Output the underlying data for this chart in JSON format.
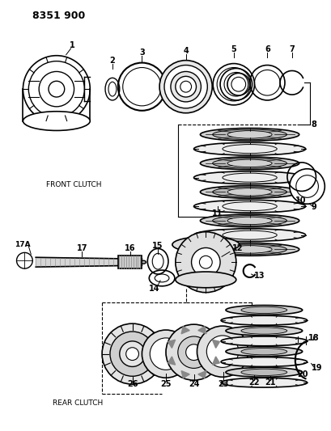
{
  "title": "8351 900",
  "bg_color": "#ffffff",
  "line_color": "#000000",
  "front_clutch_label": "FRONT CLUTCH",
  "rear_clutch_label": "REAR CLUTCH",
  "figsize": [
    4.1,
    5.33
  ],
  "dpi": 100
}
